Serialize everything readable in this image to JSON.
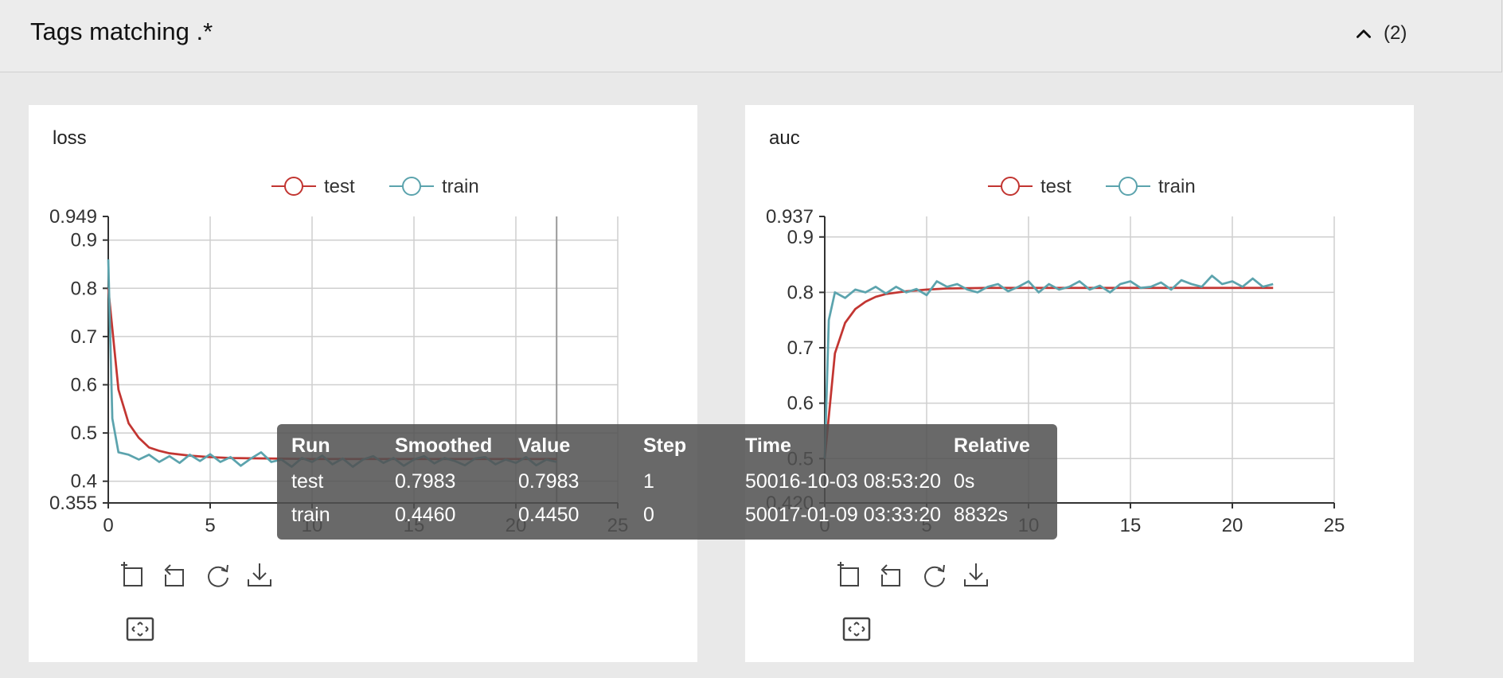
{
  "header": {
    "title": "Tags matching .*",
    "count": "(2)"
  },
  "icons": [
    "chevron-up-icon",
    "box-select-icon",
    "undo-zoom-icon",
    "restore-icon",
    "download-icon",
    "fullscreen-icon"
  ],
  "colors": {
    "test": "#c23531",
    "train": "#5ba3ad"
  },
  "tooltip": {
    "headers": [
      "Run",
      "Smoothed",
      "Value",
      "Step",
      "Time",
      "Relative"
    ],
    "rows": [
      [
        "test",
        "0.7983",
        "0.7983",
        "1",
        "50016-10-03 08:53:20",
        "0s"
      ],
      [
        "train",
        "0.4460",
        "0.4450",
        "0",
        "50017-01-09 03:33:20",
        "8832s"
      ]
    ]
  },
  "chart_data": [
    {
      "type": "line",
      "title": "loss",
      "legend": [
        "test",
        "train"
      ],
      "legend_position": "top-center",
      "xlim": [
        0,
        25
      ],
      "ylim": [
        0.355,
        0.949
      ],
      "xticks": [
        "0",
        "5",
        "10",
        "15",
        "20",
        "25"
      ],
      "yticks": [
        "0.355",
        "0.4",
        "0.5",
        "0.6",
        "0.7",
        "0.8",
        "0.9",
        "0.949"
      ],
      "grid": true,
      "hover_x": 22,
      "series": [
        {
          "name": "test",
          "x": [
            0,
            0.5,
            1,
            1.5,
            2,
            2.5,
            3,
            4,
            5,
            6,
            8,
            10,
            12,
            14,
            16,
            18,
            20,
            22
          ],
          "y": [
            0.8,
            0.59,
            0.52,
            0.49,
            0.47,
            0.463,
            0.458,
            0.453,
            0.45,
            0.448,
            0.447,
            0.446,
            0.446,
            0.446,
            0.446,
            0.446,
            0.446,
            0.446
          ]
        },
        {
          "name": "train",
          "x": [
            0,
            0.2,
            0.5,
            1,
            1.5,
            2,
            2.5,
            3,
            3.5,
            4,
            4.5,
            5,
            5.5,
            6,
            6.5,
            7,
            7.5,
            8,
            8.5,
            9,
            9.5,
            10,
            10.5,
            11,
            11.5,
            12,
            12.5,
            13,
            13.5,
            14,
            14.5,
            15,
            15.5,
            16,
            16.5,
            17,
            17.5,
            18,
            18.5,
            19,
            19.5,
            20,
            20.5,
            21,
            21.5,
            22
          ],
          "y": [
            0.86,
            0.53,
            0.46,
            0.455,
            0.445,
            0.455,
            0.44,
            0.452,
            0.438,
            0.455,
            0.442,
            0.456,
            0.44,
            0.45,
            0.432,
            0.447,
            0.46,
            0.44,
            0.445,
            0.43,
            0.448,
            0.44,
            0.453,
            0.435,
            0.447,
            0.43,
            0.445,
            0.452,
            0.438,
            0.448,
            0.432,
            0.445,
            0.452,
            0.437,
            0.448,
            0.442,
            0.433,
            0.447,
            0.45,
            0.435,
            0.445,
            0.438,
            0.45,
            0.433,
            0.445,
            0.44
          ]
        }
      ]
    },
    {
      "type": "line",
      "title": "auc",
      "legend": [
        "test",
        "train"
      ],
      "legend_position": "top-center",
      "xlim": [
        0,
        25
      ],
      "ylim": [
        0.42,
        0.937
      ],
      "xticks": [
        "0",
        "5",
        "10",
        "15",
        "20",
        "25"
      ],
      "yticks": [
        "0.420",
        "0.5",
        "0.6",
        "0.7",
        "0.8",
        "0.9",
        "0.937"
      ],
      "grid": true,
      "series": [
        {
          "name": "test",
          "x": [
            0,
            0.5,
            1,
            1.5,
            2,
            2.5,
            3,
            4,
            5,
            6,
            8,
            10,
            12,
            14,
            16,
            18,
            20,
            22
          ],
          "y": [
            0.5,
            0.69,
            0.745,
            0.77,
            0.783,
            0.792,
            0.797,
            0.802,
            0.805,
            0.807,
            0.808,
            0.808,
            0.808,
            0.808,
            0.808,
            0.808,
            0.808,
            0.808
          ]
        },
        {
          "name": "train",
          "x": [
            0,
            0.2,
            0.5,
            1,
            1.5,
            2,
            2.5,
            3,
            3.5,
            4,
            4.5,
            5,
            5.5,
            6,
            6.5,
            7,
            7.5,
            8,
            8.5,
            9,
            9.5,
            10,
            10.5,
            11,
            11.5,
            12,
            12.5,
            13,
            13.5,
            14,
            14.5,
            15,
            15.5,
            16,
            16.5,
            17,
            17.5,
            18,
            18.5,
            19,
            19.5,
            20,
            20.5,
            21,
            21.5,
            22
          ],
          "y": [
            0.5,
            0.75,
            0.8,
            0.79,
            0.805,
            0.8,
            0.81,
            0.798,
            0.81,
            0.8,
            0.806,
            0.795,
            0.82,
            0.81,
            0.815,
            0.805,
            0.8,
            0.81,
            0.815,
            0.802,
            0.81,
            0.82,
            0.8,
            0.815,
            0.805,
            0.81,
            0.82,
            0.805,
            0.812,
            0.8,
            0.815,
            0.82,
            0.808,
            0.81,
            0.818,
            0.805,
            0.822,
            0.815,
            0.81,
            0.83,
            0.815,
            0.82,
            0.81,
            0.825,
            0.81,
            0.815
          ]
        }
      ]
    }
  ]
}
